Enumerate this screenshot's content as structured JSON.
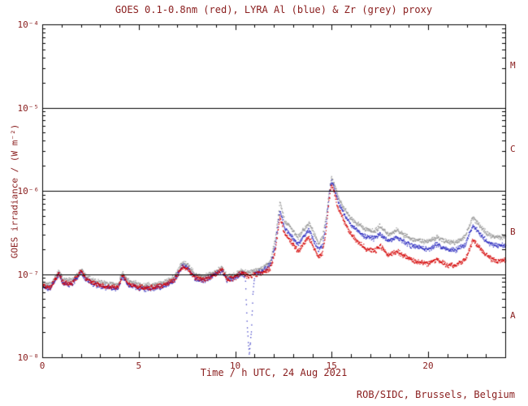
{
  "credit": "ROB/SIDC, Brussels, Belgium",
  "colors": {
    "text": "#8b2020",
    "axis": "#000000",
    "background": "#ffffff",
    "goes_red": "#d40000",
    "lyra_al_blue": "#2b2bbf",
    "lyra_zr_grey": "#969696"
  },
  "chart_data": {
    "type": "scatter",
    "title": "GOES 0.1-0.8nm (red), LYRA Al (blue) & Zr (grey) proxy",
    "xlabel": "Time / h UTC, 24 Aug 2021",
    "ylabel": "GOES irradiance / (W m⁻²)",
    "xlim": [
      0,
      24
    ],
    "ylim": [
      1e-08,
      0.0001
    ],
    "yscale": "log",
    "grid": false,
    "x_minor_step": 1,
    "x_major_ticks": [
      {
        "v": 0,
        "label": "0"
      },
      {
        "v": 5,
        "label": "5"
      },
      {
        "v": 10,
        "label": "10"
      },
      {
        "v": 15,
        "label": "15"
      },
      {
        "v": 20,
        "label": "20"
      }
    ],
    "y_decades": [
      {
        "exp": -8,
        "label": "10⁻⁸"
      },
      {
        "exp": -7,
        "label": "10⁻⁷"
      },
      {
        "exp": -6,
        "label": "10⁻⁶"
      },
      {
        "exp": -5,
        "label": "10⁻⁵"
      },
      {
        "exp": -4,
        "label": "10⁻⁴"
      }
    ],
    "hlines": [
      1e-07,
      1e-06,
      1e-05
    ],
    "flare_classes": [
      {
        "label": "M",
        "exp_mid": -4.5
      },
      {
        "label": "C",
        "exp_mid": -5.5
      },
      {
        "label": "B",
        "exp_mid": -6.5
      },
      {
        "label": "A",
        "exp_mid": -7.5
      }
    ],
    "series": [
      {
        "key": "goes_red",
        "name": "GOES 0.1-0.8nm",
        "color": "#d40000",
        "keypoints": [
          [
            0,
            7.2e-08
          ],
          [
            0.4,
            7e-08
          ],
          [
            0.85,
            1.05e-07
          ],
          [
            1.05,
            8e-08
          ],
          [
            1.5,
            7.8e-08
          ],
          [
            2.0,
            1.1e-07
          ],
          [
            2.25,
            8.8e-08
          ],
          [
            2.7,
            7.8e-08
          ],
          [
            3.3,
            7.2e-08
          ],
          [
            3.9,
            7e-08
          ],
          [
            4.15,
            9.8e-08
          ],
          [
            4.4,
            7.8e-08
          ],
          [
            5.0,
            7e-08
          ],
          [
            5.6,
            6.9e-08
          ],
          [
            6.2,
            7.4e-08
          ],
          [
            6.8,
            8.5e-08
          ],
          [
            7.25,
            1.25e-07
          ],
          [
            7.55,
            1.15e-07
          ],
          [
            7.9,
            9.2e-08
          ],
          [
            8.3,
            8.6e-08
          ],
          [
            8.75,
            9.5e-08
          ],
          [
            9.05,
            1.05e-07
          ],
          [
            9.3,
            1.15e-07
          ],
          [
            9.55,
            8.8e-08
          ],
          [
            9.9,
            9e-08
          ],
          [
            10.3,
            1.05e-07
          ],
          [
            10.65,
            9.5e-08
          ],
          [
            11.0,
            1e-07
          ],
          [
            11.4,
            1.05e-07
          ],
          [
            11.8,
            1.2e-07
          ],
          [
            12.05,
            1.9e-07
          ],
          [
            12.3,
            5e-07
          ],
          [
            12.55,
            3e-07
          ],
          [
            12.8,
            2.6e-07
          ],
          [
            13.1,
            2.1e-07
          ],
          [
            13.25,
            1.9e-07
          ],
          [
            13.55,
            2.4e-07
          ],
          [
            13.8,
            2.8e-07
          ],
          [
            14.05,
            2.1e-07
          ],
          [
            14.3,
            1.6e-07
          ],
          [
            14.5,
            1.8e-07
          ],
          [
            14.7,
            3.5e-07
          ],
          [
            14.85,
            8e-07
          ],
          [
            14.97,
            1.2e-06
          ],
          [
            15.1,
            1e-06
          ],
          [
            15.3,
            6.5e-07
          ],
          [
            15.6,
            4.5e-07
          ],
          [
            16.0,
            3e-07
          ],
          [
            16.4,
            2.4e-07
          ],
          [
            16.8,
            2e-07
          ],
          [
            17.2,
            1.9e-07
          ],
          [
            17.5,
            2.2e-07
          ],
          [
            17.9,
            1.7e-07
          ],
          [
            18.35,
            1.9e-07
          ],
          [
            18.7,
            1.7e-07
          ],
          [
            19.1,
            1.5e-07
          ],
          [
            19.6,
            1.4e-07
          ],
          [
            20.0,
            1.35e-07
          ],
          [
            20.45,
            1.55e-07
          ],
          [
            20.9,
            1.3e-07
          ],
          [
            21.4,
            1.28e-07
          ],
          [
            21.9,
            1.5e-07
          ],
          [
            22.3,
            2.6e-07
          ],
          [
            22.7,
            2e-07
          ],
          [
            23.1,
            1.6e-07
          ],
          [
            23.6,
            1.45e-07
          ],
          [
            24,
            1.5e-07
          ]
        ]
      },
      {
        "key": "lyra_al_blue",
        "name": "LYRA Al proxy",
        "color": "#2b2bbf",
        "keypoints": [
          [
            0,
            7e-08
          ],
          [
            0.4,
            6.8e-08
          ],
          [
            0.85,
            1.02e-07
          ],
          [
            1.05,
            7.8e-08
          ],
          [
            1.5,
            7.6e-08
          ],
          [
            2.0,
            1.07e-07
          ],
          [
            2.25,
            8.6e-08
          ],
          [
            2.7,
            7.6e-08
          ],
          [
            3.3,
            7e-08
          ],
          [
            3.9,
            6.8e-08
          ],
          [
            4.15,
            9.5e-08
          ],
          [
            4.4,
            7.6e-08
          ],
          [
            5.0,
            6.8e-08
          ],
          [
            5.6,
            6.7e-08
          ],
          [
            6.2,
            7.2e-08
          ],
          [
            6.8,
            8.3e-08
          ],
          [
            7.25,
            1.28e-07
          ],
          [
            7.55,
            1.18e-07
          ],
          [
            7.9,
            9e-08
          ],
          [
            8.3,
            8.4e-08
          ],
          [
            8.75,
            9.3e-08
          ],
          [
            9.05,
            1.03e-07
          ],
          [
            9.3,
            1.13e-07
          ],
          [
            9.55,
            8.6e-08
          ],
          [
            9.9,
            8.8e-08
          ],
          [
            10.3,
            1.03e-07
          ],
          [
            10.5,
            9.6e-08
          ],
          [
            10.6,
            2.5e-08
          ],
          [
            10.7,
            1.1e-08
          ],
          [
            10.8,
            1.8e-08
          ],
          [
            10.9,
            6e-08
          ],
          [
            11.0,
            1.02e-07
          ],
          [
            11.4,
            1.1e-07
          ],
          [
            11.8,
            1.3e-07
          ],
          [
            12.05,
            2.2e-07
          ],
          [
            12.3,
            6e-07
          ],
          [
            12.55,
            3.6e-07
          ],
          [
            12.8,
            3.1e-07
          ],
          [
            13.1,
            2.5e-07
          ],
          [
            13.25,
            2.3e-07
          ],
          [
            13.55,
            2.9e-07
          ],
          [
            13.8,
            3.4e-07
          ],
          [
            14.05,
            2.6e-07
          ],
          [
            14.3,
            2e-07
          ],
          [
            14.5,
            2.2e-07
          ],
          [
            14.7,
            4.2e-07
          ],
          [
            14.85,
            9e-07
          ],
          [
            14.97,
            1.32e-06
          ],
          [
            15.1,
            1.12e-06
          ],
          [
            15.3,
            7.6e-07
          ],
          [
            15.6,
            5.4e-07
          ],
          [
            16.0,
            3.9e-07
          ],
          [
            16.4,
            3.2e-07
          ],
          [
            16.8,
            2.8e-07
          ],
          [
            17.2,
            2.7e-07
          ],
          [
            17.5,
            3.1e-07
          ],
          [
            17.9,
            2.5e-07
          ],
          [
            18.35,
            2.8e-07
          ],
          [
            18.7,
            2.5e-07
          ],
          [
            19.1,
            2.2e-07
          ],
          [
            19.6,
            2.1e-07
          ],
          [
            20.0,
            2e-07
          ],
          [
            20.45,
            2.3e-07
          ],
          [
            20.9,
            2e-07
          ],
          [
            21.4,
            1.95e-07
          ],
          [
            21.9,
            2.3e-07
          ],
          [
            22.3,
            3.9e-07
          ],
          [
            22.7,
            3e-07
          ],
          [
            23.1,
            2.4e-07
          ],
          [
            23.6,
            2.2e-07
          ],
          [
            24,
            2.3e-07
          ]
        ]
      },
      {
        "key": "lyra_zr_grey",
        "name": "LYRA Zr proxy",
        "color": "#969696",
        "keypoints": [
          [
            0,
            7.8e-08
          ],
          [
            0.4,
            7.6e-08
          ],
          [
            0.85,
            1.12e-07
          ],
          [
            1.05,
            8.6e-08
          ],
          [
            1.5,
            8.4e-08
          ],
          [
            2.0,
            1.17e-07
          ],
          [
            2.25,
            9.4e-08
          ],
          [
            2.7,
            8.4e-08
          ],
          [
            3.3,
            7.8e-08
          ],
          [
            3.9,
            7.6e-08
          ],
          [
            4.15,
            1.05e-07
          ],
          [
            4.4,
            8.4e-08
          ],
          [
            5.0,
            7.6e-08
          ],
          [
            5.6,
            7.5e-08
          ],
          [
            6.2,
            8e-08
          ],
          [
            6.8,
            9.2e-08
          ],
          [
            7.25,
            1.4e-07
          ],
          [
            7.55,
            1.28e-07
          ],
          [
            7.9,
            1e-07
          ],
          [
            8.3,
            9.3e-08
          ],
          [
            8.75,
            1.02e-07
          ],
          [
            9.05,
            1.12e-07
          ],
          [
            9.3,
            1.22e-07
          ],
          [
            9.55,
            9.5e-08
          ],
          [
            9.9,
            9.7e-08
          ],
          [
            10.3,
            1.12e-07
          ],
          [
            10.65,
            1.05e-07
          ],
          [
            11.0,
            1.12e-07
          ],
          [
            11.4,
            1.2e-07
          ],
          [
            11.8,
            1.45e-07
          ],
          [
            12.05,
            2.6e-07
          ],
          [
            12.3,
            7.5e-07
          ],
          [
            12.55,
            4.4e-07
          ],
          [
            12.8,
            3.8e-07
          ],
          [
            13.1,
            3e-07
          ],
          [
            13.25,
            2.8e-07
          ],
          [
            13.55,
            3.5e-07
          ],
          [
            13.8,
            4.1e-07
          ],
          [
            14.05,
            3.2e-07
          ],
          [
            14.3,
            2.4e-07
          ],
          [
            14.5,
            2.7e-07
          ],
          [
            14.7,
            5e-07
          ],
          [
            14.85,
            1e-06
          ],
          [
            14.97,
            1.45e-06
          ],
          [
            15.1,
            1.25e-06
          ],
          [
            15.3,
            8.8e-07
          ],
          [
            15.6,
            6.3e-07
          ],
          [
            16.0,
            4.7e-07
          ],
          [
            16.4,
            3.9e-07
          ],
          [
            16.8,
            3.4e-07
          ],
          [
            17.2,
            3.3e-07
          ],
          [
            17.5,
            3.8e-07
          ],
          [
            17.9,
            3e-07
          ],
          [
            18.35,
            3.4e-07
          ],
          [
            18.7,
            3e-07
          ],
          [
            19.1,
            2.7e-07
          ],
          [
            19.6,
            2.5e-07
          ],
          [
            20.0,
            2.5e-07
          ],
          [
            20.45,
            2.8e-07
          ],
          [
            20.9,
            2.5e-07
          ],
          [
            21.4,
            2.4e-07
          ],
          [
            21.9,
            2.9e-07
          ],
          [
            22.3,
            4.9e-07
          ],
          [
            22.7,
            3.7e-07
          ],
          [
            23.1,
            3e-07
          ],
          [
            23.6,
            2.8e-07
          ],
          [
            24,
            2.9e-07
          ]
        ]
      }
    ]
  }
}
